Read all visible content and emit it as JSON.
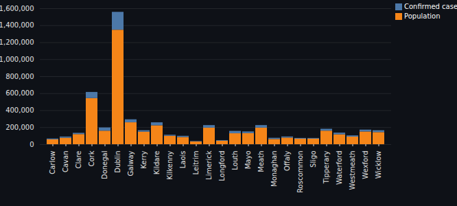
{
  "chart_data": {
    "type": "bar",
    "stacked": true,
    "grid": true,
    "legend": "top-right",
    "categories": [
      "Carlow",
      "Cavan",
      "Clare",
      "Cork",
      "Donegal",
      "Dublin",
      "Galway",
      "Kerry",
      "Kildare",
      "Kilkenny",
      "Laois",
      "Leitrim",
      "Limerick",
      "Longford",
      "Louth",
      "Mayo",
      "Meath",
      "Monaghan",
      "Offaly",
      "Roscommon",
      "Sligo",
      "Tipperary",
      "Waterford",
      "Westmeath",
      "Wexford",
      "Wicklow"
    ],
    "series": [
      {
        "name": "Confirmed cases",
        "color": "#4c78a8",
        "values": [
          10000,
          14000,
          15000,
          72000,
          38000,
          210000,
          35000,
          17000,
          35000,
          12000,
          14000,
          5000,
          30000,
          7000,
          28000,
          20000,
          30000,
          14000,
          13000,
          9000,
          8000,
          22000,
          20000,
          15000,
          22000,
          22000
        ]
      },
      {
        "name": "Population",
        "color": "#f58518",
        "values": [
          56932,
          76176,
          118817,
          542868,
          159192,
          1347359,
          258058,
          147707,
          222504,
          99232,
          84697,
          32044,
          194899,
          40873,
          128884,
          130507,
          195044,
          61386,
          77961,
          64544,
          65535,
          159553,
          116176,
          88770,
          149722,
          142425
        ]
      }
    ],
    "ylim": [
      0,
      1600000
    ],
    "yticks": [
      0,
      {
        "value": 200000,
        "label": "200,000"
      },
      {
        "value": 400000,
        "label": "400,000"
      },
      {
        "value": 600000,
        "label": "600,000"
      },
      {
        "value": 800000,
        "label": "800,000"
      },
      {
        "value": 1000000,
        "label": "1,000,000"
      },
      {
        "value": 1200000,
        "label": "1,200,000"
      },
      {
        "value": 1400000,
        "label": "1,400,000"
      },
      {
        "value": 1600000,
        "label": "1,600,000"
      }
    ]
  }
}
